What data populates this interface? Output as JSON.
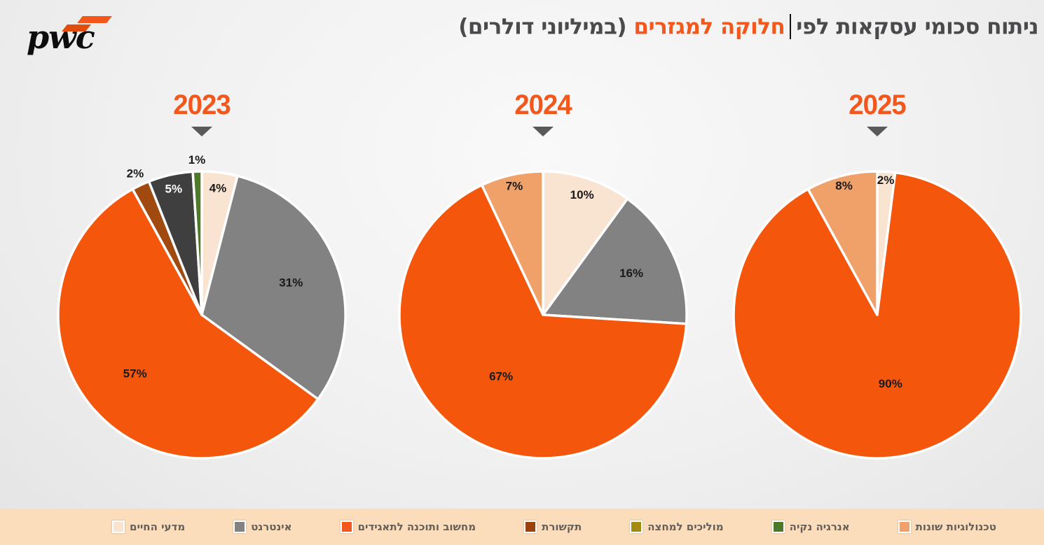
{
  "logo": {
    "text": "pwc",
    "mark_color_a": "#e04d0c",
    "mark_color_b": "#f4571c"
  },
  "title": {
    "segment_right": "ניתוח סכומי עסקאות לפי",
    "segment_highlight": "חלוקה למגזרים",
    "segment_left": "(במיליוני דולרים)",
    "highlight_color": "#f4571c",
    "text_color": "#4a4a4c"
  },
  "chart_data": [
    {
      "type": "pie",
      "year": "2023",
      "year_color": "#f4571c",
      "slices": [
        {
          "category": "מדעי החיים",
          "pct": 4,
          "color": "#f9e4d2",
          "label": "4%",
          "label_color": "#1a1a1a",
          "label_r": 0.89,
          "outside": false
        },
        {
          "category": "אינטרנט",
          "pct": 31,
          "color": "#828282",
          "label": "31%",
          "label_color": "#1a1a1a",
          "label_r": 0.66,
          "outside": false
        },
        {
          "category": "מחשוב ותוכנה לתאגידים",
          "pct": 57,
          "color": "#f4570c",
          "label": "57%",
          "label_color": "#1a1a1a",
          "label_r": 0.62,
          "outside": false
        },
        {
          "category": "תקשורת",
          "pct": 2,
          "color": "#a04a10",
          "label": "2%",
          "label_color": "#1a1a1a",
          "label_r": 1.09,
          "outside": true
        },
        {
          "category": "מוליכים למחצה",
          "pct": 5,
          "color": "#3f3f3f",
          "label": "5%",
          "label_color": "#ffffff",
          "label_r": 0.9,
          "outside": false
        },
        {
          "category": "אנרגיה נקיה",
          "pct": 1,
          "color": "#4c7a28",
          "label": "1%",
          "label_color": "#1a1a1a",
          "label_r": 1.08,
          "outside": true
        }
      ]
    },
    {
      "type": "pie",
      "year": "2024",
      "year_color": "#f4571c",
      "slices": [
        {
          "category": "מדעי החיים",
          "pct": 10,
          "color": "#f9e4d2",
          "label": "10%",
          "label_color": "#1a1a1a",
          "label_r": 0.88,
          "outside": false
        },
        {
          "category": "אינטרנט",
          "pct": 16,
          "color": "#828282",
          "label": "16%",
          "label_color": "#1a1a1a",
          "label_r": 0.68,
          "outside": false
        },
        {
          "category": "מחשוב ותוכנה לתאגידים",
          "pct": 67,
          "color": "#f4570c",
          "label": "67%",
          "label_color": "#1a1a1a",
          "label_r": 0.52,
          "outside": false
        },
        {
          "category": "טכנולוגיות שונות",
          "pct": 7,
          "color": "#f0a169",
          "label": "7%",
          "label_color": "#1a1a1a",
          "label_r": 0.92,
          "outside": false
        }
      ]
    },
    {
      "type": "pie",
      "year": "2025",
      "year_color": "#f4571c",
      "slices": [
        {
          "category": "מדעי החיים",
          "pct": 2,
          "color": "#f9e4d2",
          "label": "2%",
          "label_color": "#1a1a1a",
          "label_r": 0.94,
          "outside": false
        },
        {
          "category": "מחשוב ותוכנה לתאגידים",
          "pct": 90,
          "color": "#f4570c",
          "label": "90%",
          "label_color": "#1a1a1a",
          "label_r": 0.49,
          "outside": false
        },
        {
          "category": "טכנולוגיות שונות",
          "pct": 8,
          "color": "#f0a169",
          "label": "8%",
          "label_color": "#1a1a1a",
          "label_r": 0.93,
          "outside": false
        }
      ]
    }
  ],
  "legend": {
    "background": "#fbdcbb",
    "items": [
      {
        "label": "מדעי החיים",
        "color": "#f9e4d2"
      },
      {
        "label": "אינטרנט",
        "color": "#828282"
      },
      {
        "label": "מחשוב ותוכנה לתאגידים",
        "color": "#f4571c"
      },
      {
        "label": "תקשורת",
        "color": "#9c4108"
      },
      {
        "label": "מוליכים למחצה",
        "color": "#a38b12"
      },
      {
        "label": "אנרגיה נקיה",
        "color": "#4c7a28"
      },
      {
        "label": "טכנולוגיות שונות",
        "color": "#f0a169"
      }
    ]
  }
}
